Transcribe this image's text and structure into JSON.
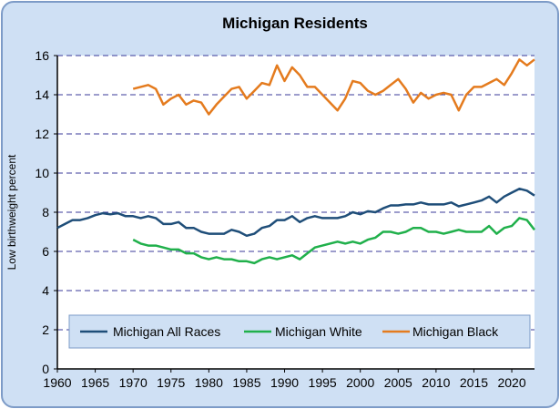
{
  "chart_data": {
    "type": "line",
    "title": "Michigan Residents",
    "xlabel": "",
    "ylabel": "Low birthweight percent",
    "xlim": [
      1960,
      2023
    ],
    "ylim": [
      0,
      16
    ],
    "x_ticks": [
      1960,
      1965,
      1970,
      1975,
      1980,
      1985,
      1990,
      1995,
      2000,
      2005,
      2010,
      2015,
      2020
    ],
    "y_ticks": [
      0,
      2,
      4,
      6,
      8,
      10,
      12,
      14,
      16
    ],
    "grid": "horizontal dashed",
    "legend_position": "bottom",
    "series": [
      {
        "name": "Michigan All Races",
        "color": "#1f4e79",
        "x": [
          1960,
          1961,
          1962,
          1963,
          1964,
          1965,
          1966,
          1967,
          1968,
          1969,
          1970,
          1971,
          1972,
          1973,
          1974,
          1975,
          1976,
          1977,
          1978,
          1979,
          1980,
          1981,
          1982,
          1983,
          1984,
          1985,
          1986,
          1987,
          1988,
          1989,
          1990,
          1991,
          1992,
          1993,
          1994,
          1995,
          1996,
          1997,
          1998,
          1999,
          2000,
          2001,
          2002,
          2003,
          2004,
          2005,
          2006,
          2007,
          2008,
          2009,
          2010,
          2011,
          2012,
          2013,
          2014,
          2015,
          2016,
          2017,
          2018,
          2019,
          2020,
          2021,
          2022,
          2023
        ],
        "y": [
          7.2,
          7.4,
          7.6,
          7.6,
          7.7,
          7.85,
          7.95,
          7.9,
          7.95,
          7.8,
          7.8,
          7.7,
          7.8,
          7.7,
          7.4,
          7.4,
          7.5,
          7.2,
          7.2,
          7.0,
          6.9,
          6.9,
          6.9,
          7.1,
          7.0,
          6.8,
          6.9,
          7.2,
          7.3,
          7.6,
          7.6,
          7.8,
          7.5,
          7.7,
          7.8,
          7.7,
          7.7,
          7.7,
          7.8,
          8.0,
          7.9,
          8.05,
          8.0,
          8.2,
          8.35,
          8.35,
          8.4,
          8.4,
          8.5,
          8.4,
          8.4,
          8.4,
          8.5,
          8.3,
          8.4,
          8.5,
          8.6,
          8.8,
          8.5,
          8.8,
          9.0,
          9.2,
          9.1,
          8.85
        ]
      },
      {
        "name": "Michigan White",
        "color": "#20b04b",
        "x": [
          1970,
          1971,
          1972,
          1973,
          1974,
          1975,
          1976,
          1977,
          1978,
          1979,
          1980,
          1981,
          1982,
          1983,
          1984,
          1985,
          1986,
          1987,
          1988,
          1989,
          1990,
          1991,
          1992,
          1993,
          1994,
          1995,
          1996,
          1997,
          1998,
          1999,
          2000,
          2001,
          2002,
          2003,
          2004,
          2005,
          2006,
          2007,
          2008,
          2009,
          2010,
          2011,
          2012,
          2013,
          2014,
          2015,
          2016,
          2017,
          2018,
          2019,
          2020,
          2021,
          2022,
          2023
        ],
        "y": [
          6.6,
          6.4,
          6.3,
          6.3,
          6.2,
          6.1,
          6.1,
          5.9,
          5.9,
          5.7,
          5.6,
          5.7,
          5.6,
          5.6,
          5.5,
          5.5,
          5.4,
          5.6,
          5.7,
          5.6,
          5.7,
          5.8,
          5.6,
          5.9,
          6.2,
          6.3,
          6.4,
          6.5,
          6.4,
          6.5,
          6.4,
          6.6,
          6.7,
          7.0,
          7.0,
          6.9,
          7.0,
          7.2,
          7.2,
          7.0,
          7.0,
          6.9,
          7.0,
          7.1,
          7.0,
          7.0,
          7.0,
          7.3,
          6.9,
          7.2,
          7.3,
          7.7,
          7.6,
          7.1
        ]
      },
      {
        "name": "Michigan Black",
        "color": "#e47b1e",
        "x": [
          1970,
          1971,
          1972,
          1973,
          1974,
          1975,
          1976,
          1977,
          1978,
          1979,
          1980,
          1981,
          1982,
          1983,
          1984,
          1985,
          1986,
          1987,
          1988,
          1989,
          1990,
          1991,
          1992,
          1993,
          1994,
          1995,
          1996,
          1997,
          1998,
          1999,
          2000,
          2001,
          2002,
          2003,
          2004,
          2005,
          2006,
          2007,
          2008,
          2009,
          2010,
          2011,
          2012,
          2013,
          2014,
          2015,
          2016,
          2017,
          2018,
          2019,
          2020,
          2021,
          2022,
          2023
        ],
        "y": [
          14.3,
          14.4,
          14.5,
          14.3,
          13.5,
          13.8,
          14.0,
          13.5,
          13.7,
          13.6,
          13.0,
          13.5,
          13.9,
          14.3,
          14.4,
          13.8,
          14.2,
          14.6,
          14.5,
          15.5,
          14.7,
          15.4,
          15.0,
          14.4,
          14.4,
          14.0,
          13.6,
          13.2,
          13.8,
          14.7,
          14.6,
          14.2,
          14.0,
          14.2,
          14.5,
          14.8,
          14.3,
          13.6,
          14.1,
          13.8,
          14.0,
          14.1,
          14.0,
          13.2,
          14.0,
          14.4,
          14.4,
          14.6,
          14.8,
          14.5,
          15.1,
          15.8,
          15.5,
          15.8
        ]
      }
    ]
  }
}
